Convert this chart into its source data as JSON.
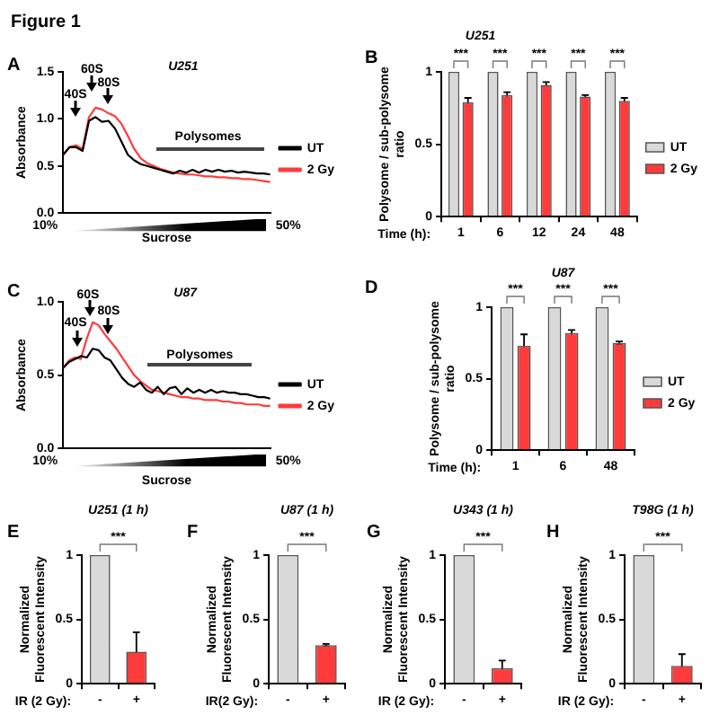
{
  "chart_data": [
    {
      "type": "line",
      "title": "U251",
      "xlabel": "Sucrose",
      "ylabel": "Absorbance",
      "categories": [
        null,
        null,
        null,
        null,
        null,
        null,
        null,
        null,
        null,
        null,
        null,
        null,
        null,
        null,
        null,
        null,
        null,
        null,
        null,
        null,
        null,
        null,
        null,
        null,
        null,
        null,
        null,
        null,
        null,
        null,
        null,
        null,
        null
      ],
      "series": [
        {
          "name": "UT",
          "color": "#000000",
          "values": [
            0.62,
            0.7,
            0.7,
            0.66,
            0.98,
            1.02,
            0.97,
            0.98,
            0.9,
            0.76,
            0.62,
            0.56,
            0.52,
            0.5,
            0.48,
            0.46,
            0.44,
            0.42,
            0.45,
            0.43,
            0.46,
            0.43,
            0.46,
            0.44,
            0.46,
            0.44,
            0.45,
            0.43,
            0.44,
            0.43,
            0.42,
            0.42,
            0.41
          ]
        },
        {
          "name": "2 Gy",
          "color": "#ff3b3b",
          "values": [
            0.62,
            0.7,
            0.72,
            0.68,
            1.02,
            1.12,
            1.1,
            1.06,
            1.03,
            0.95,
            0.82,
            0.68,
            0.58,
            0.53,
            0.5,
            0.47,
            0.45,
            0.43,
            0.42,
            0.41,
            0.41,
            0.4,
            0.39,
            0.39,
            0.38,
            0.38,
            0.37,
            0.37,
            0.36,
            0.36,
            0.35,
            0.34,
            0.33
          ]
        }
      ],
      "ylim": [
        0,
        1.5
      ],
      "yticks": [
        {
          "value": 0,
          "label": "0.0"
        },
        {
          "value": 0.5,
          "label": "0.5"
        },
        {
          "value": 1,
          "label": "1.0"
        },
        {
          "value": 1.5,
          "label": "1.5"
        }
      ],
      "grid": false,
      "legend": "right",
      "marker": "none",
      "line_style": "solid",
      "annotations": [
        "Figure 1",
        "A",
        "40S",
        "60S",
        "80S",
        "Polysomes",
        "10%",
        "50%"
      ]
    },
    {
      "type": "bar",
      "title": "U251",
      "xlabel": "Time (h):",
      "ylabel": "Polysome / sub-polysome ratio",
      "categories": [
        "1",
        "6",
        "12",
        "24",
        "48"
      ],
      "series": [
        {
          "name": "UT",
          "color": "#d9d9d9",
          "values": [
            1,
            1,
            1,
            1,
            1
          ]
        },
        {
          "name": "2 Gy",
          "color": "#ff3b3b",
          "values": [
            0.79,
            0.84,
            0.91,
            0.83,
            0.8
          ],
          "errors": [
            0.03,
            0.02,
            0.02,
            0.01,
            0.02
          ]
        }
      ],
      "ylim": [
        0,
        1
      ],
      "yticks": [
        0,
        0.5,
        1
      ],
      "grid": false,
      "legend": "right",
      "annotations": [
        "B",
        "***",
        "***",
        "***",
        "***",
        "***"
      ]
    },
    {
      "type": "line",
      "title": "U87",
      "xlabel": "Sucrose",
      "ylabel": "Absorbance",
      "categories": [
        null,
        null,
        null,
        null,
        null,
        null,
        null,
        null,
        null,
        null,
        null,
        null,
        null,
        null,
        null,
        null,
        null,
        null,
        null,
        null,
        null,
        null,
        null,
        null,
        null,
        null,
        null,
        null,
        null,
        null,
        null,
        null,
        null,
        null,
        null,
        null
      ],
      "series": [
        {
          "name": "UT",
          "color": "#000000",
          "values": [
            0.55,
            0.59,
            0.61,
            0.63,
            0.62,
            0.68,
            0.67,
            0.62,
            0.6,
            0.54,
            0.48,
            0.44,
            0.42,
            0.45,
            0.4,
            0.38,
            0.42,
            0.37,
            0.41,
            0.42,
            0.37,
            0.41,
            0.38,
            0.4,
            0.38,
            0.4,
            0.38,
            0.39,
            0.38,
            0.38,
            0.37,
            0.37,
            0.36,
            0.35,
            0.35,
            0.34
          ]
        },
        {
          "name": "2 Gy",
          "color": "#ff3b3b",
          "values": [
            0.55,
            0.6,
            0.62,
            0.61,
            0.75,
            0.86,
            0.84,
            0.78,
            0.73,
            0.68,
            0.62,
            0.56,
            0.5,
            0.46,
            0.43,
            0.4,
            0.39,
            0.38,
            0.37,
            0.36,
            0.35,
            0.35,
            0.34,
            0.34,
            0.33,
            0.33,
            0.33,
            0.32,
            0.32,
            0.31,
            0.31,
            0.3,
            0.3,
            0.3,
            0.29,
            0.29
          ]
        }
      ],
      "ylim": [
        0,
        1
      ],
      "yticks": [
        {
          "value": 0,
          "label": "0.0"
        },
        {
          "value": 0.5,
          "label": "0.5"
        },
        {
          "value": 1,
          "label": "1.0"
        }
      ],
      "grid": false,
      "legend": "right",
      "marker": "none",
      "line_style": "solid",
      "annotations": [
        "C",
        "40S",
        "60S",
        "80S",
        "Polysomes",
        "10%",
        "50%"
      ]
    },
    {
      "type": "bar",
      "title": "U87",
      "xlabel": "Time (h):",
      "ylabel": "Polysome / sub-polysome ratio",
      "categories": [
        "1",
        "6",
        "48"
      ],
      "series": [
        {
          "name": "UT",
          "color": "#d9d9d9",
          "values": [
            1,
            1,
            1
          ]
        },
        {
          "name": "2 Gy",
          "color": "#ff3b3b",
          "values": [
            0.73,
            0.82,
            0.75
          ],
          "errors": [
            0.08,
            0.02,
            0.01
          ]
        }
      ],
      "ylim": [
        0,
        1
      ],
      "yticks": [
        0,
        0.5,
        1
      ],
      "grid": false,
      "legend": "right",
      "annotations": [
        "D",
        "***",
        "***",
        "***"
      ]
    },
    {
      "type": "bar",
      "title": "U251 (1 h)",
      "xlabel": "IR (2 Gy):",
      "ylabel": "Normalized Fluorescent Intensity",
      "categories": [
        "-",
        "+"
      ],
      "values": [
        1,
        0.25
      ],
      "colors": [
        "#d9d9d9",
        "#ff3b3b"
      ],
      "errors": [
        null,
        0.15
      ],
      "ylim": [
        0,
        1
      ],
      "yticks": [
        0,
        0.5,
        1
      ],
      "grid": false,
      "annotations": [
        "E",
        "***"
      ]
    },
    {
      "type": "bar",
      "title": "U87 (1 h)",
      "xlabel": "IR(2 Gy):",
      "ylabel": "Normalized Fluorescent Intensity",
      "categories": [
        "-",
        "+"
      ],
      "values": [
        1,
        0.3
      ],
      "colors": [
        "#d9d9d9",
        "#ff3b3b"
      ],
      "errors": [
        null,
        0.01
      ],
      "ylim": [
        0,
        1
      ],
      "yticks": [
        0,
        0.5,
        1
      ],
      "grid": false,
      "annotations": [
        "F",
        "***"
      ]
    },
    {
      "type": "bar",
      "title": "U343 (1 h)",
      "xlabel": "IR (2 Gy):",
      "ylabel": "Normalized Fluorescent Intensity",
      "categories": [
        "-",
        "+"
      ],
      "values": [
        1,
        0.12
      ],
      "colors": [
        "#d9d9d9",
        "#ff3b3b"
      ],
      "errors": [
        null,
        0.06
      ],
      "ylim": [
        0,
        1
      ],
      "yticks": [
        0,
        0.5,
        1
      ],
      "grid": false,
      "annotations": [
        "G",
        "***"
      ]
    },
    {
      "type": "bar",
      "title": "T98G (1 h)",
      "xlabel": "IR (2 Gy):",
      "ylabel": "Normalized Fluorescent Intensity",
      "categories": [
        "-",
        "+"
      ],
      "values": [
        1,
        0.14
      ],
      "colors": [
        "#d9d9d9",
        "#ff3b3b"
      ],
      "errors": [
        null,
        0.09
      ],
      "ylim": [
        0,
        1
      ],
      "yticks": [
        0,
        0.5,
        1
      ],
      "grid": false,
      "annotations": [
        "H",
        "***"
      ]
    }
  ]
}
